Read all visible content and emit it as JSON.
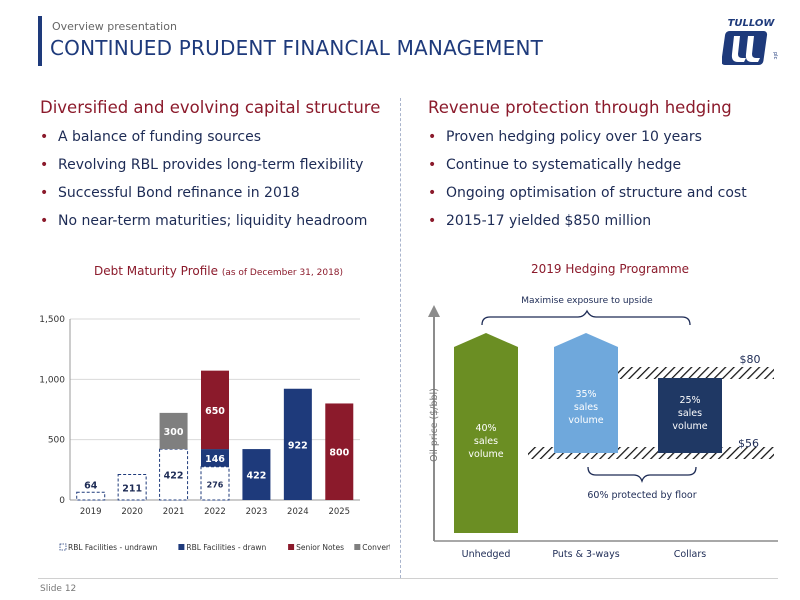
{
  "header": {
    "overview": "Overview presentation",
    "title": "CONTINUED PRUDENT FINANCIAL MANAGEMENT",
    "logo_text": "TULLOW",
    "logo_suffix": "plc"
  },
  "left": {
    "heading": "Diversified and evolving capital structure",
    "bullets": [
      "A balance of funding sources",
      "Revolving RBL provides long-term flexibility",
      "Successful Bond refinance in 2018",
      "No near-term maturities; liquidity headroom"
    ]
  },
  "right": {
    "heading": "Revenue protection through hedging",
    "bullets": [
      "Proven hedging policy over 10 years",
      "Continue to systematically hedge",
      "Ongoing optimisation of structure and cost",
      "2015-17 yielded $850 million"
    ]
  },
  "bullet_char": "•",
  "footer": {
    "slide": "Slide 12"
  },
  "colors": {
    "navy": "#1e3a7b",
    "maroon": "#8b1a2b",
    "grey": "#7f7f7f",
    "olive": "#6b8e23",
    "lightblue": "#6fa8dc",
    "darknavy": "#1f3864"
  },
  "chart_data": [
    {
      "type": "bar",
      "title": "Debt Maturity Profile",
      "subtitle": "(as of December 31, 2018)",
      "categories": [
        "2019",
        "2020",
        "2021",
        "2022",
        "2023",
        "2024",
        "2025"
      ],
      "ylim": [
        0,
        1500
      ],
      "yticks": [
        "0",
        "500",
        "1,000",
        "1,500"
      ],
      "stacked": true,
      "series": [
        {
          "name": "RBL Facilities - undrawn",
          "values": [
            64,
            211,
            422,
            276,
            0,
            0,
            0
          ],
          "labels": [
            "64",
            "211",
            "422",
            "276",
            "",
            "",
            ""
          ]
        },
        {
          "name": "RBL Facilities - drawn",
          "values": [
            0,
            0,
            0,
            146,
            422,
            922,
            0
          ],
          "labels": [
            "",
            "",
            "",
            "146",
            "422",
            "922",
            ""
          ]
        },
        {
          "name": "Senior Notes",
          "values": [
            0,
            0,
            0,
            650,
            0,
            0,
            800
          ],
          "labels": [
            "",
            "",
            "",
            "650",
            "",
            "",
            "800"
          ]
        },
        {
          "name": "Convertible Bonds",
          "values": [
            0,
            0,
            300,
            0,
            0,
            0,
            0
          ],
          "labels": [
            "",
            "",
            "300",
            "",
            "",
            "",
            ""
          ]
        }
      ],
      "legend_position": "bottom"
    },
    {
      "type": "bar",
      "title": "2019 Hedging Programme",
      "ylabel": "Oil price ($/bbl)",
      "categories": [
        "Unhedged",
        "Puts & 3-ways",
        "Collars"
      ],
      "bars": [
        {
          "label_lines": [
            "40%",
            "sales",
            "volume"
          ]
        },
        {
          "label_lines": [
            "35%",
            "sales",
            "volume"
          ]
        },
        {
          "label_lines": [
            "25%",
            "sales",
            "volume"
          ]
        }
      ],
      "annotations": {
        "upside": "Maximise exposure to upside",
        "floor": "60% protected by floor",
        "ceiling_price": "$80",
        "floor_price": "$56"
      }
    }
  ]
}
